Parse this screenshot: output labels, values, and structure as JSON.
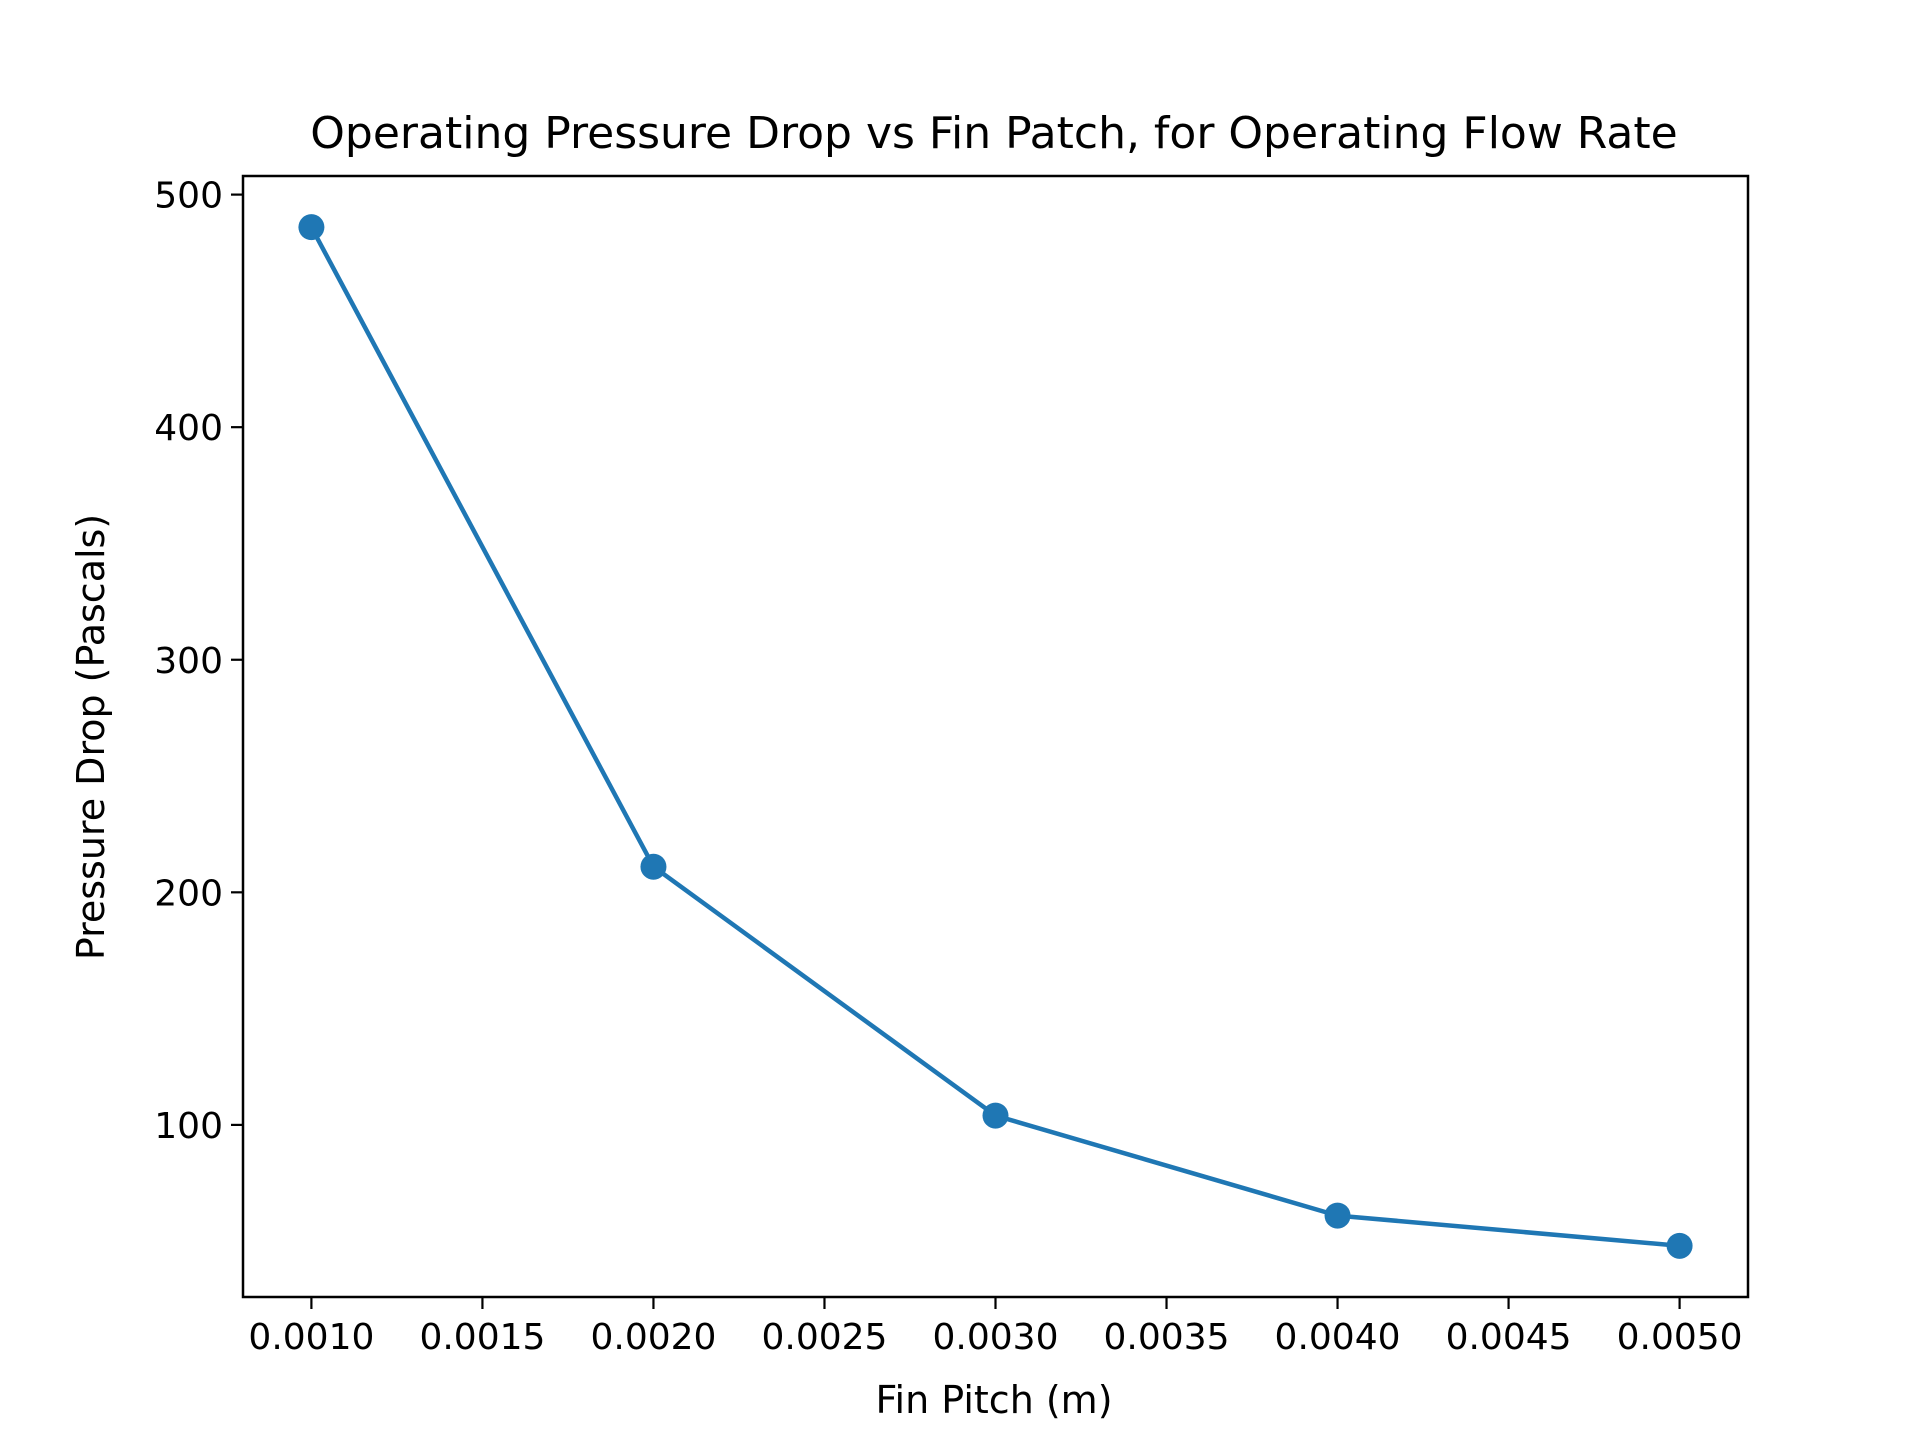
{
  "chart_data": {
    "type": "line",
    "title": "Operating Pressure Drop vs Fin Patch, for Operating Flow Rate",
    "xlabel": "Fin Pitch (m)",
    "ylabel": "Pressure Drop (Pascals)",
    "xlim": [
      0.0008,
      0.0052
    ],
    "ylim": [
      26,
      508
    ],
    "x_ticks": [
      0.001,
      0.0015,
      0.002,
      0.0025,
      0.003,
      0.0035,
      0.004,
      0.0045,
      0.005
    ],
    "x_tick_labels": [
      "0.0010",
      "0.0015",
      "0.0020",
      "0.0025",
      "0.0030",
      "0.0035",
      "0.0040",
      "0.0045",
      "0.0050"
    ],
    "y_ticks": [
      100,
      200,
      300,
      400,
      500
    ],
    "y_tick_labels": [
      "100",
      "200",
      "300",
      "400",
      "500"
    ],
    "grid": false,
    "series": [
      {
        "x": [
          0.001,
          0.002,
          0.003,
          0.004,
          0.005
        ],
        "y": [
          486,
          211,
          104,
          61,
          48
        ],
        "color": "#1f77b4",
        "marker": "circle"
      }
    ]
  }
}
